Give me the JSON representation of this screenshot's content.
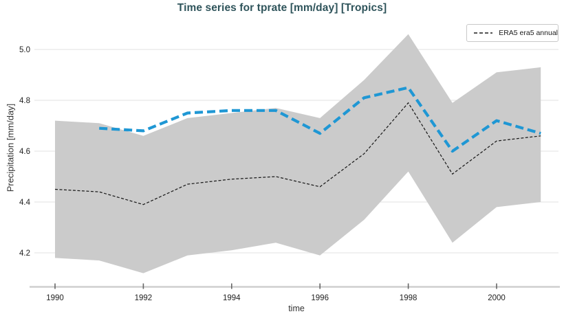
{
  "chart": {
    "title": "Time series for tprate [mm/day] [Tropics]",
    "xlabel": "time",
    "ylabel": "Precipitation [mm/day]",
    "legend": {
      "label": "ERA5 era5 annual"
    }
  },
  "colors": {
    "title": "#2f545b",
    "era5_line": "#1a1a1a",
    "blue_line": "#1f97d4",
    "band": "#cbcbcb",
    "gridline": "#e7e7e7",
    "spine": "#cfcfcf",
    "tick": "#666666",
    "tick_label": "#222222",
    "axis_label": "#333333",
    "legend_border": "#c8c8c8"
  },
  "chart_data": {
    "type": "line",
    "title": "Time series for tprate [mm/day] [Tropics]",
    "xlabel": "time",
    "ylabel": "Precipitation [mm/day]",
    "xticks": [
      1990,
      1992,
      1994,
      1996,
      1998,
      2000
    ],
    "yticks": [
      4.2,
      4.4,
      4.6,
      4.8,
      5.0
    ],
    "xlim": [
      1989.55,
      2001.4
    ],
    "ylim": [
      4.06,
      5.11
    ],
    "grid": "horizontal-only",
    "legend_position": "top-right",
    "x": [
      1990,
      1991,
      1992,
      1993,
      1994,
      1995,
      1996,
      1997,
      1998,
      1999,
      2000,
      2001
    ],
    "series": [
      {
        "name": "ERA5 era5 annual",
        "style": "dashed-thin",
        "color": "#1a1a1a",
        "in_legend": true,
        "y": [
          4.45,
          4.44,
          4.39,
          4.47,
          4.49,
          4.5,
          4.46,
          4.59,
          4.79,
          4.51,
          4.64,
          4.66
        ]
      },
      {
        "name": "unlabeled blue series",
        "style": "dashed-thick",
        "color": "#1f97d4",
        "in_legend": false,
        "y": [
          null,
          4.69,
          4.68,
          4.75,
          4.76,
          4.76,
          4.67,
          4.81,
          4.85,
          4.6,
          4.72,
          4.67
        ]
      }
    ],
    "uncertainty_band": {
      "color": "#cbcbcb",
      "upper": [
        4.72,
        4.71,
        4.66,
        4.73,
        4.75,
        4.77,
        4.73,
        4.88,
        5.06,
        4.79,
        4.91,
        4.93
      ],
      "lower": [
        4.18,
        4.17,
        4.12,
        4.19,
        4.21,
        4.24,
        4.19,
        4.33,
        4.52,
        4.24,
        4.38,
        4.4
      ]
    }
  }
}
